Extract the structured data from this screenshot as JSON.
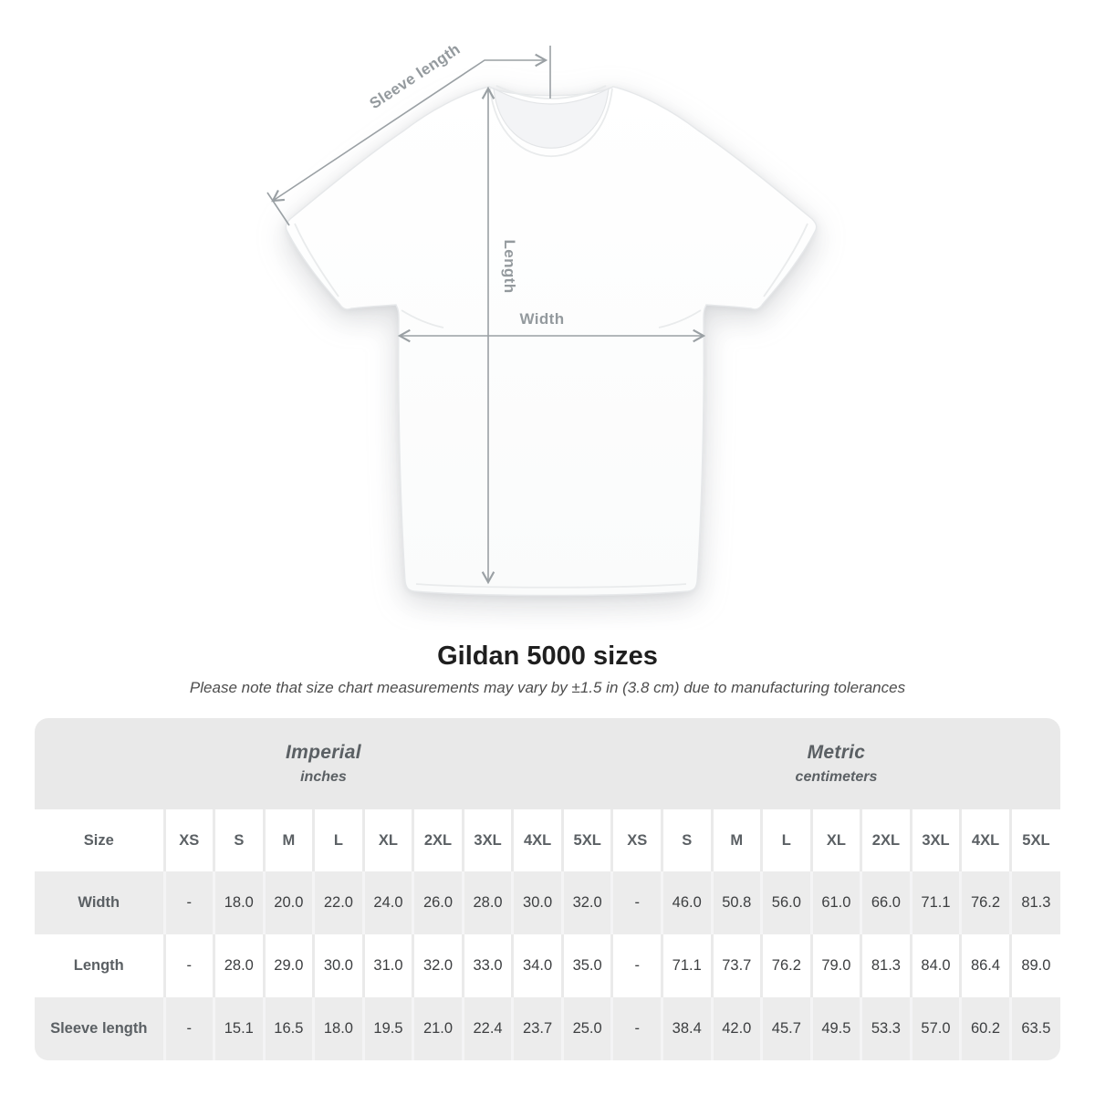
{
  "heading": {
    "title": "Gildan 5000 sizes",
    "subtitle": "Please note that size chart measurements may vary by ±1.5 in (3.8 cm) due to manufacturing tolerances"
  },
  "diagram": {
    "labels": {
      "sleeve_length": "Sleeve length",
      "length": "Length",
      "width": "Width"
    }
  },
  "chart_data": {
    "type": "table",
    "title": "Gildan 5000 sizes",
    "size_column_header": "Size",
    "unit_groups": [
      {
        "label": "Imperial",
        "sublabel": "inches"
      },
      {
        "label": "Metric",
        "sublabel": "centimeters"
      }
    ],
    "sizes": [
      "XS",
      "S",
      "M",
      "L",
      "XL",
      "2XL",
      "3XL",
      "4XL",
      "5XL"
    ],
    "rows": [
      {
        "label": "Width",
        "imperial": [
          "-",
          "18.0",
          "20.0",
          "22.0",
          "24.0",
          "26.0",
          "28.0",
          "30.0",
          "32.0"
        ],
        "metric": [
          "-",
          "46.0",
          "50.8",
          "56.0",
          "61.0",
          "66.0",
          "71.1",
          "76.2",
          "81.3"
        ]
      },
      {
        "label": "Length",
        "imperial": [
          "-",
          "28.0",
          "29.0",
          "30.0",
          "31.0",
          "32.0",
          "33.0",
          "34.0",
          "35.0"
        ],
        "metric": [
          "-",
          "71.1",
          "73.7",
          "76.2",
          "79.0",
          "81.3",
          "84.0",
          "86.4",
          "89.0"
        ]
      },
      {
        "label": "Sleeve length",
        "imperial": [
          "-",
          "15.1",
          "16.5",
          "18.0",
          "19.5",
          "21.0",
          "22.4",
          "23.7",
          "25.0"
        ],
        "metric": [
          "-",
          "38.4",
          "42.0",
          "45.7",
          "49.5",
          "53.3",
          "57.0",
          "60.2",
          "63.5"
        ]
      }
    ]
  },
  "colors": {
    "band_bg": "#e9e9e9",
    "row_alt_bg": "#ececec",
    "header_text": "#5b6064",
    "cell_text": "#3d3f41",
    "title_text": "#1f1f1f",
    "subtitle_text": "#4d4d4d",
    "annotation": "#9aa0a4",
    "annotation_text": "#949a9e"
  }
}
